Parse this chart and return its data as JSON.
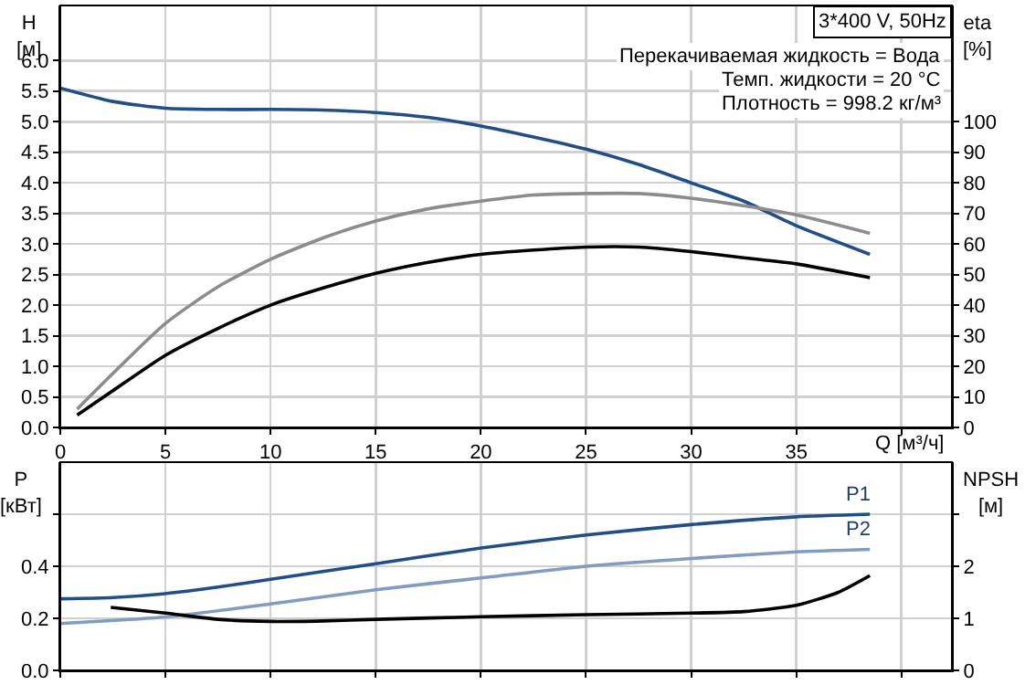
{
  "chart_data": [
    {
      "type": "line",
      "title": "3*400 V, 50Hz",
      "xlabel": "Q [м³/ч]",
      "ylabel": "H\n[м]",
      "y2label": "eta\n[%]",
      "annotations": [
        "Перекачиваемая жидкость = Вода",
        "Темп. жидкости = 20 °C",
        "Плотность = 998.2 кг/м³"
      ],
      "xlim": [
        0,
        42.4
      ],
      "xticks": [
        0,
        5,
        10,
        15,
        20,
        25,
        30,
        35,
        {
          "value": 40,
          "label": null
        }
      ],
      "ylim": [
        0,
        6.9
      ],
      "yticks": [
        {
          "value": 0,
          "label": "0.0"
        },
        0.5,
        {
          "value": 1,
          "label": "1.0"
        },
        1.5,
        {
          "value": 2,
          "label": "2.0"
        },
        2.5,
        {
          "value": 3,
          "label": "3.0"
        },
        3.5,
        {
          "value": 4,
          "label": "4.0"
        },
        4.5,
        {
          "value": 5,
          "label": "5.0"
        },
        5.5,
        {
          "value": 6,
          "label": "6.0"
        }
      ],
      "y2lim": [
        0,
        138
      ],
      "y2ticks": [
        0,
        10,
        20,
        30,
        40,
        50,
        60,
        70,
        80,
        90,
        100
      ],
      "grid": true,
      "legend": false,
      "marker": "none",
      "line_style": "solid",
      "series": [
        {
          "color": "#1f4e8c",
          "x": [
            0,
            2.5,
            5,
            7.5,
            10,
            12.5,
            15,
            17.5,
            20,
            22.5,
            25,
            27.5,
            30,
            32.5,
            35,
            38.5
          ],
          "values": [
            5.55,
            5.33,
            5.22,
            5.2,
            5.2,
            5.19,
            5.15,
            5.07,
            4.93,
            4.75,
            4.55,
            4.3,
            4.0,
            3.7,
            3.3,
            2.83
          ]
        },
        {
          "color": "#8c8c8c",
          "axis": "y2",
          "x": [
            0.8,
            5,
            7.5,
            10,
            12.5,
            15,
            17.5,
            20,
            22.5,
            25,
            27.5,
            30,
            32.5,
            35,
            38.5
          ],
          "values": [
            6,
            34,
            46,
            55,
            62,
            67.5,
            71.5,
            74,
            76,
            76.5,
            76.5,
            75,
            72.5,
            69.5,
            63.5
          ]
        },
        {
          "color": "#000000",
          "axis": "y2",
          "x": [
            0.8,
            2.5,
            5,
            7.5,
            10,
            12.5,
            15,
            17.5,
            20,
            22.5,
            25,
            27.5,
            30,
            32.5,
            35,
            38.5
          ],
          "values": [
            4,
            12,
            23.6,
            32.4,
            40,
            45.6,
            50.4,
            54,
            56.6,
            58,
            59,
            59,
            57.5,
            55.5,
            53.5,
            49
          ]
        }
      ]
    },
    {
      "type": "line",
      "ylabel": "P\n[кВт]",
      "y2label": "NPSH\n[м]",
      "tick_labels": "y",
      "xlim": [
        0,
        42.4
      ],
      "xticks": [
        0,
        5,
        10,
        15,
        20,
        25,
        30,
        35,
        40
      ],
      "ylim": [
        0,
        0.8
      ],
      "yticks": [
        {
          "value": 0,
          "label": "0.0"
        },
        0.2,
        0.4,
        {
          "value": 0.6,
          "label": null
        }
      ],
      "y2lim": [
        0,
        4
      ],
      "y2ticks": [
        0,
        1,
        2,
        {
          "value": 3,
          "label": null
        }
      ],
      "grid": true,
      "legend": false,
      "marker": "none",
      "line_style": "solid",
      "series": [
        {
          "name": "P1",
          "color": "#1f4e8c",
          "x": [
            0,
            2.5,
            5,
            7.5,
            10,
            15,
            20,
            25,
            30,
            35,
            38.5
          ],
          "values": [
            0.275,
            0.28,
            0.295,
            0.32,
            0.35,
            0.41,
            0.47,
            0.52,
            0.56,
            0.59,
            0.6
          ]
        },
        {
          "name": "P2",
          "color": "#7f9cc4",
          "x": [
            0,
            5,
            10,
            15,
            20,
            25,
            30,
            35,
            38.5
          ],
          "values": [
            0.18,
            0.205,
            0.255,
            0.31,
            0.355,
            0.4,
            0.43,
            0.455,
            0.465
          ]
        },
        {
          "color": "#000000",
          "axis": "y2",
          "x": [
            2.4,
            5,
            7.5,
            10,
            12.5,
            15,
            20,
            25,
            30,
            32.5,
            35,
            37,
            38.5
          ],
          "values": [
            1.21,
            1.1,
            0.98,
            0.94,
            0.95,
            0.98,
            1.03,
            1.07,
            1.1,
            1.13,
            1.25,
            1.5,
            1.82
          ]
        }
      ]
    }
  ]
}
